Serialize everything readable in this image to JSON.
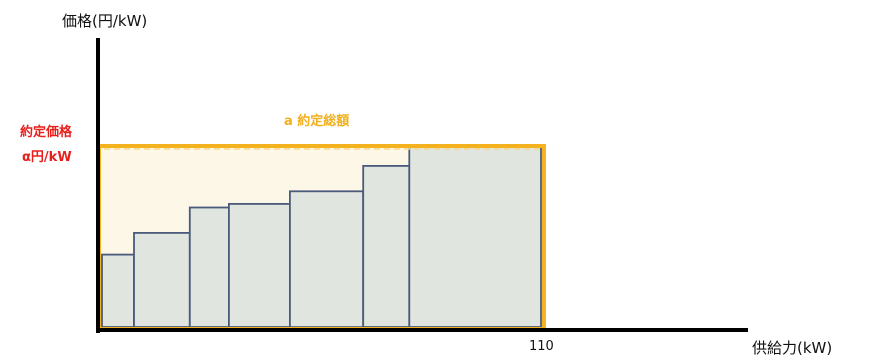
{
  "y_axis_title": "価格(円/kW)",
  "x_axis_title": "供給力(kW)",
  "contract_price": {
    "line1": "約定価格",
    "line2": "α円/kW"
  },
  "contract_total_label": "a  約定総額",
  "x_tick_label": "110",
  "colors": {
    "axis": "#000000",
    "bar_fill": "#e0e6df",
    "bar_stroke": "#4a5a7a",
    "area_fill": "#fdf7e7",
    "area_stroke": "#f5b21f",
    "price_text": "#e8201c",
    "area_text": "#f2b01e"
  },
  "chart_data": {
    "type": "bar",
    "description_axis": "cumulative supply (kW) vs price (yen/kW)",
    "x_max_label": 110,
    "clearing_price_level": 1.0,
    "bars": [
      {
        "width": 0.073,
        "height": 0.4
      },
      {
        "width": 0.127,
        "height": 0.52
      },
      {
        "width": 0.089,
        "height": 0.66
      },
      {
        "width": 0.139,
        "height": 0.68
      },
      {
        "width": 0.167,
        "height": 0.75
      },
      {
        "width": 0.105,
        "height": 0.89
      },
      {
        "width": 0.3,
        "height": 1.0
      }
    ]
  }
}
